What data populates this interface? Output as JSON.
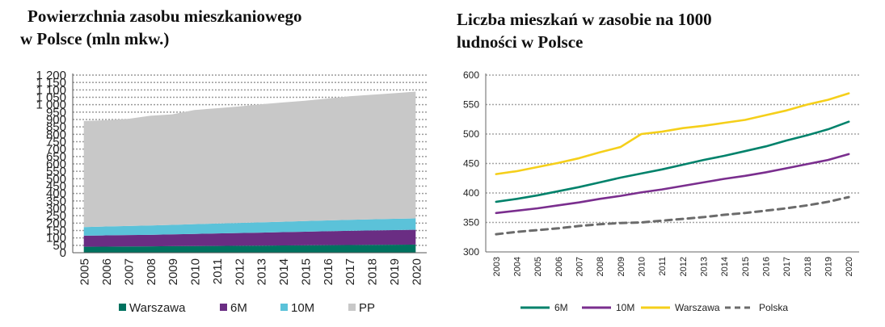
{
  "chart_data": [
    {
      "type": "area",
      "title_lines": [
        "Powierzchnia zasobu mieszkaniowego",
        "w Polsce (mln mkw.)"
      ],
      "categories": [
        "2005",
        "2006",
        "2007",
        "2008",
        "2009",
        "2010",
        "2011",
        "2012",
        "2013",
        "2014",
        "2015",
        "2016",
        "2017",
        "2018",
        "2019",
        "2020"
      ],
      "stacked": true,
      "ylim": [
        0,
        1200
      ],
      "yticks": [
        "0",
        "50",
        "100",
        "150",
        "200",
        "250",
        "300",
        "350",
        "400",
        "450",
        "500",
        "550",
        "600",
        "650",
        "700",
        "750",
        "800",
        "850",
        "900",
        "950",
        "1 000",
        "1 050",
        "1 100",
        "1 150",
        "1 200"
      ],
      "grid": true,
      "legend_position": "bottom",
      "series": [
        {
          "name": "Warszawa",
          "color": "#00725f",
          "values": [
            40,
            41,
            42,
            43,
            44,
            45,
            46,
            47,
            48,
            49,
            50,
            51,
            52,
            53,
            54,
            55
          ]
        },
        {
          "name": "6M",
          "color": "#6a2d83",
          "values": [
            75,
            76,
            77,
            78,
            80,
            82,
            84,
            86,
            88,
            90,
            92,
            94,
            96,
            98,
            99,
            100
          ]
        },
        {
          "name": "10M",
          "color": "#5bc2d9",
          "values": [
            58,
            60,
            62,
            63,
            64,
            66,
            67,
            68,
            69,
            70,
            72,
            73,
            74,
            75,
            76,
            77
          ]
        },
        {
          "name": "PP",
          "color": "#c8c8c8",
          "values": [
            717,
            718,
            723,
            741,
            747,
            771,
            779,
            787,
            798,
            806,
            813,
            823,
            835,
            841,
            848,
            856
          ]
        }
      ]
    },
    {
      "type": "line",
      "title_lines": [
        "Liczba mieszkań w zasobie na 1000",
        "ludności w Polsce"
      ],
      "categories": [
        "2003",
        "2004",
        "2005",
        "2006",
        "2007",
        "2008",
        "2009",
        "2010",
        "2011",
        "2012",
        "2013",
        "2014",
        "2015",
        "2016",
        "2017",
        "2018",
        "2019",
        "2020"
      ],
      "ylim": [
        300,
        600
      ],
      "yticks": [
        "300",
        "350",
        "400",
        "450",
        "500",
        "550",
        "600"
      ],
      "grid": true,
      "legend_position": "bottom",
      "series": [
        {
          "name": "6M",
          "color": "#00826b",
          "dash": false,
          "values": [
            385,
            390,
            396,
            403,
            410,
            418,
            426,
            433,
            440,
            448,
            456,
            463,
            471,
            479,
            489,
            498,
            508,
            521
          ]
        },
        {
          "name": "10M",
          "color": "#7a2e8e",
          "dash": false,
          "values": [
            366,
            370,
            374,
            379,
            384,
            390,
            395,
            401,
            406,
            412,
            418,
            424,
            429,
            435,
            442,
            449,
            456,
            466
          ]
        },
        {
          "name": "Warszawa",
          "color": "#f5cf1a",
          "dash": false,
          "values": [
            432,
            437,
            444,
            451,
            459,
            469,
            478,
            500,
            504,
            510,
            514,
            519,
            524,
            532,
            540,
            550,
            558,
            569
          ]
        },
        {
          "name": "Polska",
          "color": "#6b6b6b",
          "dash": true,
          "values": [
            330,
            334,
            337,
            340,
            344,
            347,
            349,
            350,
            353,
            356,
            359,
            363,
            366,
            370,
            374,
            379,
            385,
            393
          ]
        }
      ]
    }
  ]
}
